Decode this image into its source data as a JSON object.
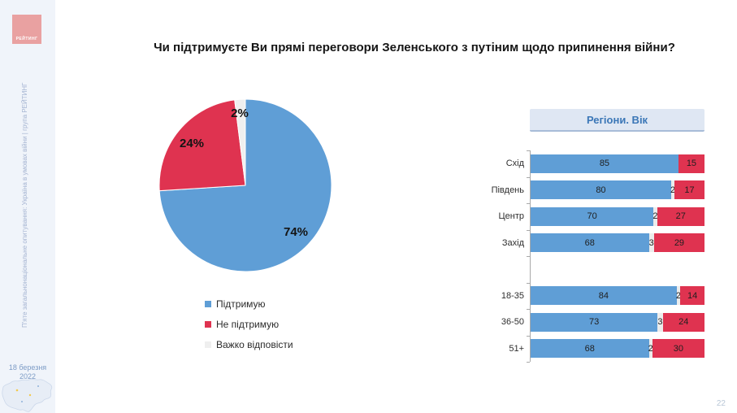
{
  "title": "Чи підтримуєте Ви прямі переговори Зеленського з путіним щодо припинення війни?",
  "sidebar": {
    "logo_text": "РЕЙТИНГ",
    "vertical_text": "П'яте загальнонаціональне опитування: Україна в умовах війни | група РЕЙТИНГ",
    "date": "18 березня 2022"
  },
  "page_number": "22",
  "colors": {
    "support_blue": "#5f9ed6",
    "oppose_red": "#df3350",
    "undecided_gray": "#efefef",
    "panel_header_text": "#3b77b7"
  },
  "chart_data": [
    {
      "type": "pie",
      "labels": [
        "Підтримую",
        "Не підтримую",
        "Важко відповісти"
      ],
      "values": [
        74,
        24,
        2
      ],
      "value_labels": [
        "74%",
        "24%",
        "2%"
      ],
      "colors": [
        "#5f9ed6",
        "#df3350",
        "#efefef"
      ],
      "start_angle_deg": 0,
      "direction": "clockwise",
      "legend_position": "bottom-left"
    },
    {
      "type": "bar",
      "title": "Регіони. Вік",
      "orientation": "horizontal",
      "stacked": true,
      "xlim": [
        0,
        100
      ],
      "categories": [
        "Схід",
        "Південь",
        "Центр",
        "Захід",
        "18-35",
        "36-50",
        "51+"
      ],
      "group_gap_after": "Захід",
      "series": [
        {
          "name": "Підтримую",
          "color": "#5f9ed6",
          "values": [
            85,
            80,
            70,
            68,
            84,
            73,
            68
          ]
        },
        {
          "name": "Важко відповісти",
          "color": "#ececec",
          "values": [
            0,
            2,
            2,
            3,
            2,
            3,
            2
          ]
        },
        {
          "name": "Не підтримую",
          "color": "#df3350",
          "values": [
            15,
            17,
            27,
            29,
            14,
            24,
            30
          ]
        }
      ]
    }
  ]
}
